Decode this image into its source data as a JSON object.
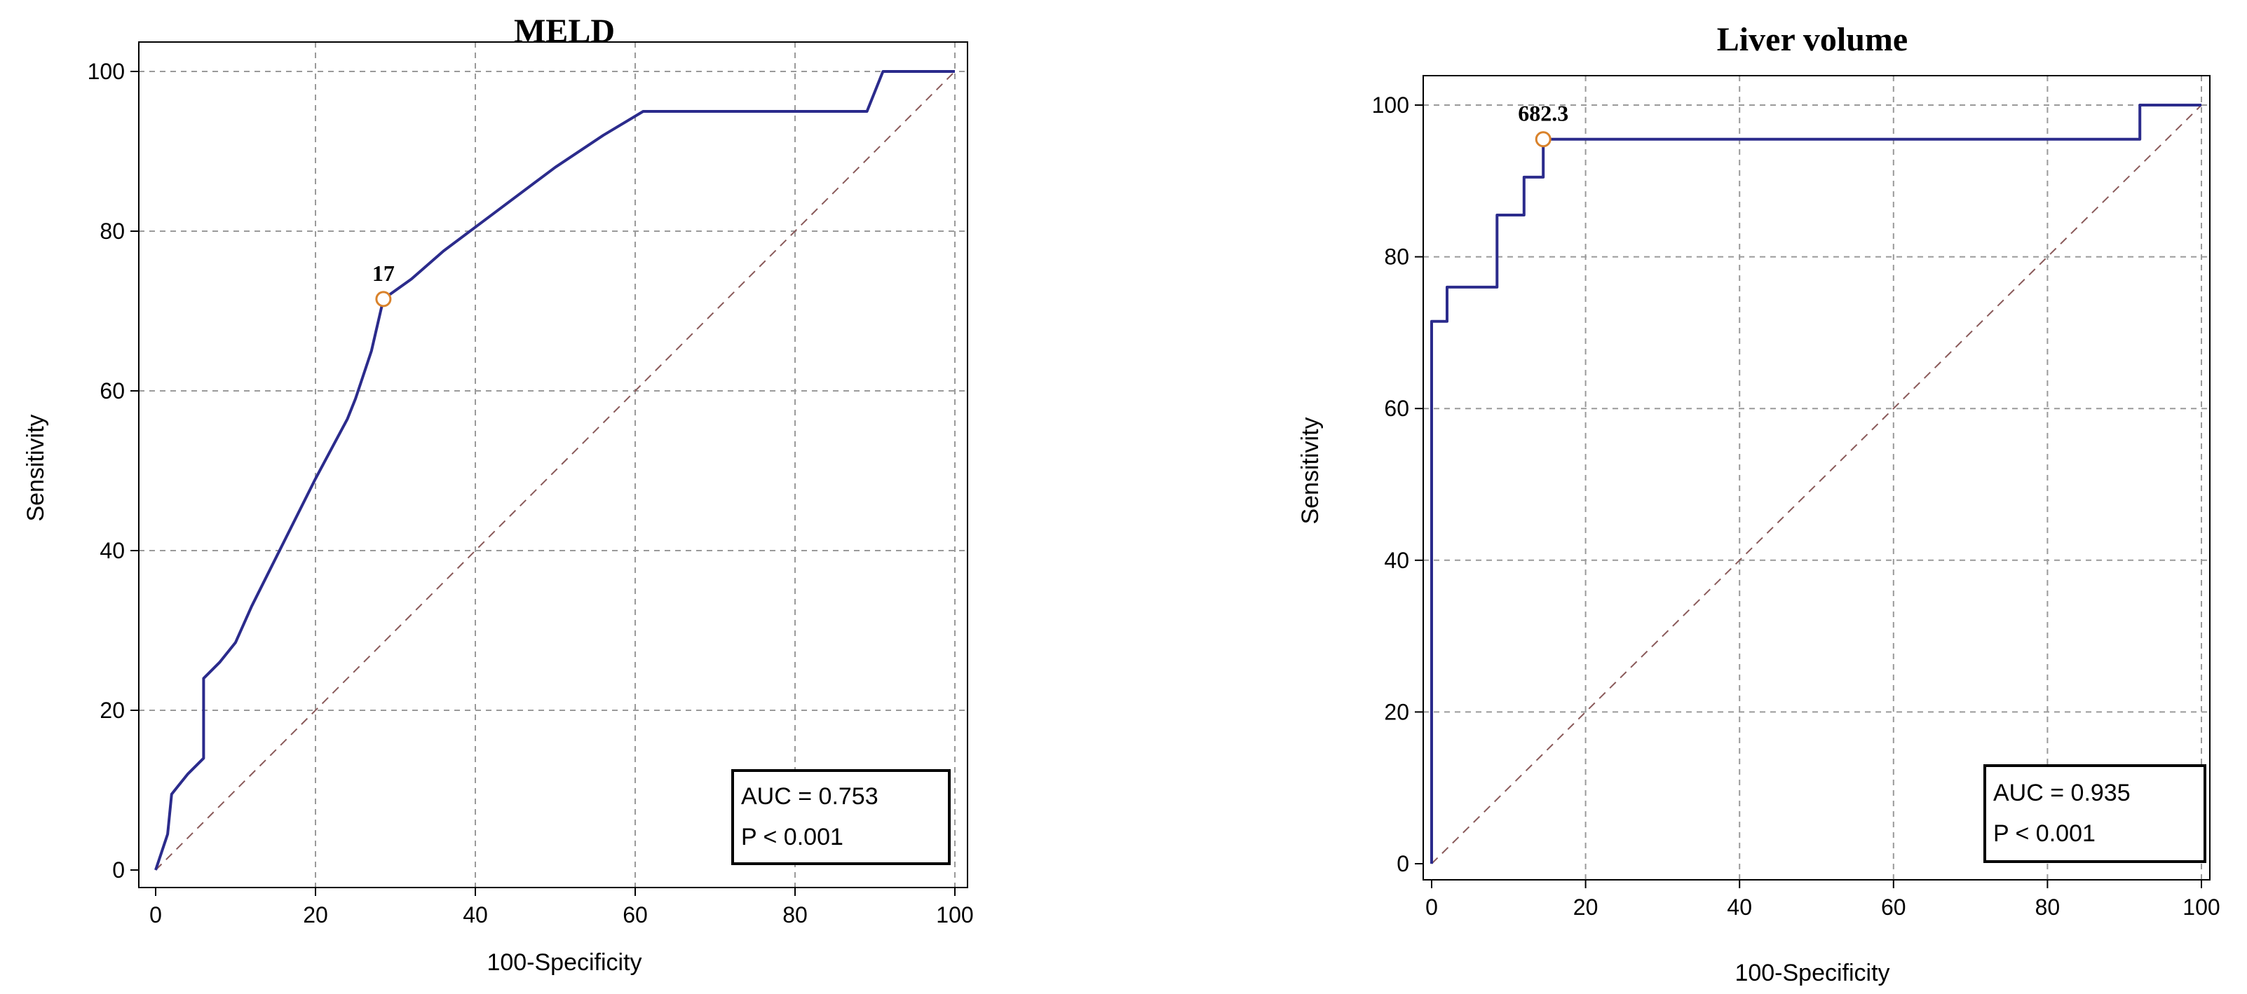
{
  "chart_data": [
    {
      "type": "line",
      "title": "MELD",
      "xlabel": "100-Specificity",
      "ylabel": "Sensitivity",
      "xlim": [
        0,
        100
      ],
      "ylim": [
        0,
        100
      ],
      "xticks": [
        "0",
        "20",
        "40",
        "60",
        "80",
        "100"
      ],
      "yticks": [
        "0",
        "20",
        "40",
        "60",
        "80",
        "100"
      ],
      "grid": true,
      "diagonal_reference": true,
      "series": [
        {
          "x": [
            0,
            1.5,
            2,
            4,
            6,
            6,
            8,
            10,
            12,
            16,
            20,
            24,
            25,
            27,
            28.5,
            32,
            36,
            42,
            50,
            56,
            61,
            89,
            91,
            100
          ],
          "y": [
            0,
            4.5,
            9.5,
            12,
            14,
            24,
            26,
            28.5,
            33,
            41,
            49,
            56.5,
            59,
            65,
            71.5,
            74,
            77.5,
            82,
            88,
            92,
            95,
            95,
            100,
            100
          ]
        }
      ],
      "cutoff": {
        "x": 28.5,
        "y": 71.5,
        "label": "17"
      },
      "stats": {
        "auc": "AUC = 0.753",
        "p": "P < 0.001"
      }
    },
    {
      "type": "line",
      "title": "Liver volume",
      "xlabel": "100-Specificity",
      "ylabel": "Sensitivity",
      "xlim": [
        0,
        100
      ],
      "ylim": [
        0,
        100
      ],
      "xticks": [
        "0",
        "20",
        "40",
        "60",
        "80",
        "100"
      ],
      "yticks": [
        "0",
        "20",
        "40",
        "60",
        "80",
        "100"
      ],
      "grid": true,
      "diagonal_reference": true,
      "series": [
        {
          "x": [
            0,
            0,
            2,
            2,
            8.5,
            8.5,
            12,
            12,
            14.5,
            14.5,
            92,
            92,
            100
          ],
          "y": [
            0,
            71.5,
            71.5,
            76,
            76,
            85.5,
            85.5,
            90.5,
            90.5,
            95.5,
            95.5,
            100,
            100
          ]
        }
      ],
      "cutoff": {
        "x": 14.5,
        "y": 95.5,
        "label": "682.3"
      },
      "stats": {
        "auc": "AUC = 0.935",
        "p": "P < 0.001"
      }
    }
  ]
}
